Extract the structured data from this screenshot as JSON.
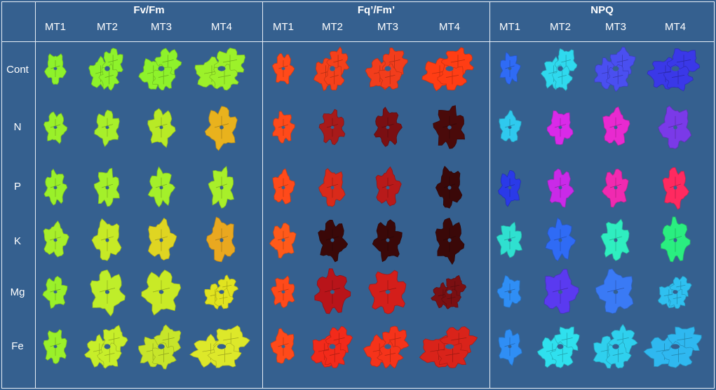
{
  "groups": [
    {
      "title": "Fv/Fm",
      "columns": [
        "MT1",
        "MT2",
        "MT3",
        "MT4"
      ]
    },
    {
      "title": "Fq’/Fm’",
      "columns": [
        "MT1",
        "MT2",
        "MT3",
        "MT4"
      ]
    },
    {
      "title": "NPQ",
      "columns": [
        "MT1",
        "MT2",
        "MT3",
        "MT4"
      ]
    }
  ],
  "rows": [
    "Cont",
    "N",
    "P",
    "K",
    "Mg",
    "Fe"
  ],
  "colors": {
    "background": "#35608f",
    "border": "#e8eef6",
    "fvfm": [
      [
        "#8ef22b",
        "#8ef22b",
        "#8ef22b",
        "#9cf12a"
      ],
      [
        "#9af02a",
        "#a8ef2a",
        "#b8ea26",
        "#e9b21d"
      ],
      [
        "#9af02a",
        "#a4f02a",
        "#a4f02a",
        "#a8ef2a"
      ],
      [
        "#a8ef2a",
        "#c7ea26",
        "#dfd522",
        "#e9a820"
      ],
      [
        "#9af02a",
        "#bfee2a",
        "#c9ea26",
        "#e1e31f"
      ],
      [
        "#9af02a",
        "#c7ee2a",
        "#c7e52a",
        "#dde82a"
      ]
    ],
    "fqfm": [
      [
        "#ff4a1a",
        "#f5401a",
        "#f23d1c",
        "#ff3d14"
      ],
      [
        "#ff4a1a",
        "#a81a1a",
        "#7a0f12",
        "#4a0a0a"
      ],
      [
        "#ff4a1a",
        "#d92a1a",
        "#b81a1a",
        "#3a0808"
      ],
      [
        "#ff5a1a",
        "#3a0808",
        "#3a0808",
        "#3a0808"
      ],
      [
        "#ff4a1a",
        "#b8141a",
        "#d41e1a",
        "#7a0f12"
      ],
      [
        "#ff4a1a",
        "#f22a1a",
        "#f5331a",
        "#d9231a"
      ]
    ],
    "npq": [
      [
        "#2f6bf5",
        "#2fd9ee",
        "#4a4ff0",
        "#3a38e8"
      ],
      [
        "#2fc9ee",
        "#d92ae8",
        "#e82ad0",
        "#7a3ae8"
      ],
      [
        "#2a3ae8",
        "#c92ae8",
        "#f02ab0",
        "#ff2a60"
      ],
      [
        "#2fe0d0",
        "#2f6bf5",
        "#2feec0",
        "#2aee80"
      ],
      [
        "#2f8ef5",
        "#5a3af0",
        "#3a7af5",
        "#2fc0f0"
      ],
      [
        "#2f8ef5",
        "#2fe0ee",
        "#2fd0ee",
        "#2fb8f0"
      ]
    ]
  }
}
